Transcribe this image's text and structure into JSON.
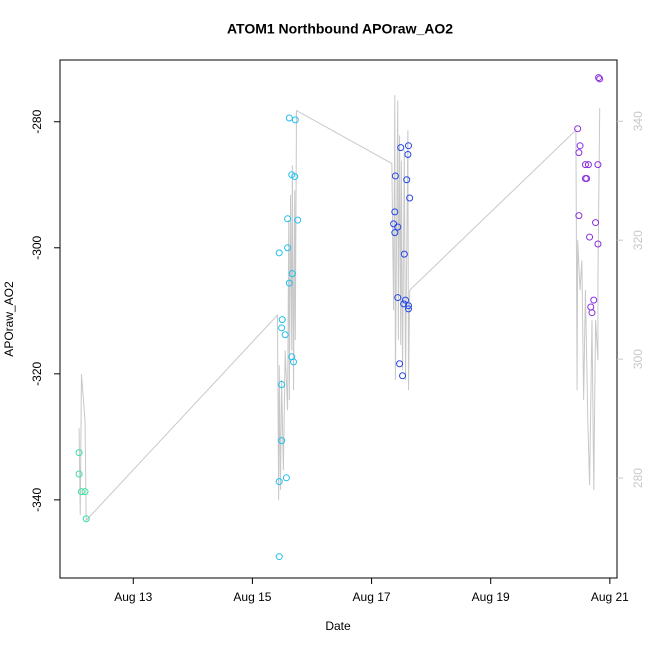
{
  "chart_data": {
    "type": "scatter",
    "title": "ATOM1 Northbound APOraw_AO2",
    "xlabel": "Date",
    "ylabel": "APOraw_AO2",
    "xlim": [
      11.77,
      21.12
    ],
    "ylim": [
      -352.4,
      -270.2
    ],
    "y2lim": [
      263.2,
      350.3
    ],
    "xticks": [
      {
        "value": 13,
        "label": "Aug 13"
      },
      {
        "value": 15,
        "label": "Aug 15"
      },
      {
        "value": 17,
        "label": "Aug 17"
      },
      {
        "value": 19,
        "label": "Aug 19"
      },
      {
        "value": 21,
        "label": "Aug 21"
      }
    ],
    "yticks": [
      -340,
      -320,
      -300,
      -280
    ],
    "y2ticks": [
      280,
      300,
      320,
      340
    ],
    "y2color": "#c8c8c8",
    "series": [
      {
        "type": "line",
        "axis": "y2",
        "color": "#c8c8c8",
        "x": [
          12.09,
          12.11,
          12.13,
          12.19,
          12.21,
          15.42,
          15.44,
          15.45,
          15.47,
          15.49,
          15.52,
          15.55,
          15.59,
          15.61,
          15.62,
          15.64,
          15.66,
          15.67,
          15.69,
          15.71,
          15.72,
          15.74,
          17.34,
          17.37,
          17.39,
          17.4,
          17.44,
          17.45,
          17.47,
          17.49,
          17.5,
          17.52,
          17.55,
          17.57,
          17.61,
          17.62,
          17.64,
          20.43,
          20.45,
          20.46,
          20.5,
          20.53,
          20.56,
          20.59,
          20.63,
          20.66,
          20.7,
          20.73,
          20.76,
          20.8,
          20.8,
          20.83
        ],
        "values": [
          288.4,
          273.8,
          297.5,
          289.7,
          272.9,
          307.4,
          276.3,
          299.0,
          278.0,
          296.5,
          281.3,
          301.5,
          291.4,
          323.4,
          293.1,
          327.6,
          301.5,
          332.6,
          294.8,
          328.4,
          303.2,
          341.8,
          332.9,
          308.2,
          344.4,
          296.5,
          343.5,
          303.2,
          337.6,
          302.4,
          333.4,
          298.2,
          335.1,
          296.5,
          338.5,
          294.8,
          311.6,
          338.5,
          294.8,
          320.0,
          311.6,
          316.6,
          293.1,
          311.6,
          289.7,
          278.8,
          306.6,
          278.0,
          306.6,
          299.8,
          313.3,
          342.2
        ]
      },
      {
        "type": "scatter",
        "color": "#3de0a0",
        "x": [
          12.09,
          12.09,
          12.13,
          12.19,
          12.21
        ],
        "values": [
          -332.5,
          -335.9,
          -338.7,
          -338.7,
          -343.0
        ]
      },
      {
        "type": "scatter",
        "color": "#22bff0",
        "x": [
          15.45,
          15.45,
          15.45,
          15.49,
          15.49,
          15.49,
          15.5,
          15.55,
          15.57,
          15.59,
          15.59,
          15.62,
          15.62,
          15.66,
          15.66,
          15.67,
          15.69,
          15.71,
          15.72,
          15.76
        ],
        "values": [
          -300.8,
          -337.1,
          -349.0,
          -312.7,
          -321.7,
          -330.6,
          -311.4,
          -313.8,
          -336.5,
          -295.4,
          -300.0,
          -279.4,
          -305.6,
          -288.4,
          -317.3,
          -304.1,
          -318.1,
          -288.7,
          -279.7,
          -295.6
        ]
      },
      {
        "type": "scatter",
        "color": "#2448e6",
        "x": [
          17.37,
          17.39,
          17.39,
          17.4,
          17.44,
          17.44,
          17.47,
          17.49,
          17.52,
          17.54,
          17.55,
          17.57,
          17.59,
          17.61,
          17.62,
          17.62,
          17.62,
          17.64
        ],
        "values": [
          -296.2,
          -294.3,
          -297.6,
          -288.6,
          -296.7,
          -307.9,
          -318.4,
          -284.1,
          -320.3,
          -308.9,
          -301.0,
          -308.3,
          -289.2,
          -285.2,
          -309.2,
          -283.8,
          -309.7,
          -292.1
        ]
      },
      {
        "type": "scatter",
        "color": "#8a30e0",
        "x": [
          20.46,
          20.48,
          20.48,
          20.5,
          20.59,
          20.59,
          20.61,
          20.64,
          20.66,
          20.68,
          20.7,
          20.73,
          20.76,
          20.8,
          20.8,
          20.81,
          20.83
        ],
        "values": [
          -281.1,
          -294.9,
          -284.9,
          -283.8,
          -286.8,
          -289.0,
          -289.0,
          -286.8,
          -298.3,
          -309.4,
          -310.3,
          -308.3,
          -296.0,
          -299.4,
          -286.8,
          -273.0,
          -273.2
        ]
      }
    ]
  }
}
